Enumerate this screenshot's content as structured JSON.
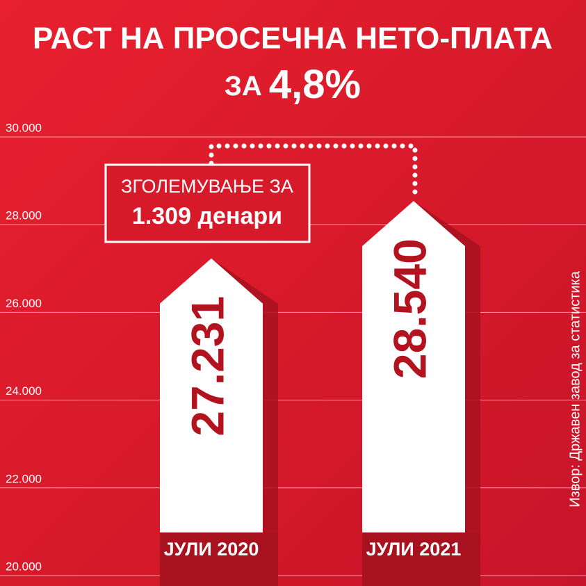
{
  "chart_data": {
    "type": "arrow-bar",
    "title": "РАСТ НА ПРОСЕЧНА НЕТО-ПЛАТА",
    "subtitle_parts": [
      "ЗА",
      "4,8%"
    ],
    "categories": [
      "ЈУЛИ 2020",
      "ЈУЛИ 2021"
    ],
    "values": [
      27231,
      28540
    ],
    "value_labels": [
      "27.231",
      "28.540"
    ],
    "color": "#ffffff",
    "ylim": [
      20000,
      30000
    ],
    "yticks": [
      {
        "value": 20000,
        "label": "20.000"
      },
      {
        "value": 22000,
        "label": "22.000"
      },
      {
        "value": 24000,
        "label": "24.000"
      },
      {
        "value": 26000,
        "label": "26.000"
      },
      {
        "value": 28000,
        "label": "28.000"
      },
      {
        "value": 30000,
        "label": "30.000"
      }
    ],
    "grid": true,
    "annotation": [
      "ЗГОЛЕМУВАЊЕ ЗА",
      "1.309 денари"
    ],
    "source": "Извор: Државен завод за статистика"
  }
}
